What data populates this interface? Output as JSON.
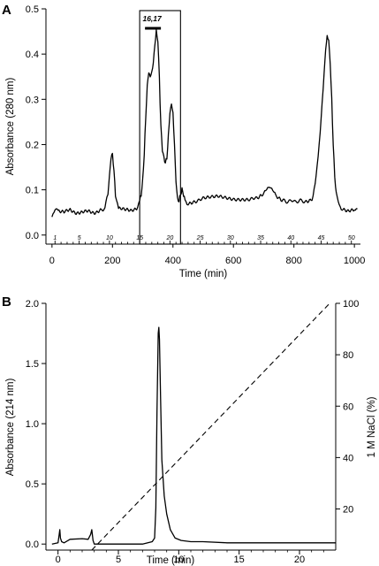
{
  "chart_data": [
    {
      "panel": "A",
      "type": "line",
      "xlabel": "Time (min)",
      "ylabel": "Absorbance (280 nm)",
      "xlim": [
        -20,
        1020
      ],
      "ylim": [
        -0.02,
        0.5
      ],
      "xticks": [
        0,
        200,
        400,
        600,
        800,
        1000
      ],
      "yticks": [
        0.0,
        0.1,
        0.2,
        0.3,
        0.4,
        0.5
      ],
      "series": [
        {
          "x": [
            0,
            10,
            20,
            40,
            60,
            80,
            100,
            120,
            140,
            160,
            175,
            185,
            190,
            195,
            200,
            205,
            210,
            220,
            240,
            260,
            280,
            290,
            295,
            300,
            305,
            310,
            315,
            320,
            325,
            330,
            335,
            340,
            345,
            350,
            355,
            360,
            365,
            370,
            375,
            380,
            385,
            390,
            395,
            400,
            405,
            410,
            415,
            420,
            425,
            430,
            435,
            440,
            450,
            470,
            500,
            550,
            600,
            650,
            680,
            700,
            710,
            720,
            730,
            740,
            760,
            800,
            840,
            860,
            870,
            880,
            890,
            900,
            905,
            910,
            915,
            920,
            925,
            930,
            935,
            940,
            950,
            960,
            980,
            1000,
            1010
          ],
          "y": [
            0.04,
            0.06,
            0.055,
            0.05,
            0.055,
            0.05,
            0.05,
            0.052,
            0.05,
            0.055,
            0.06,
            0.09,
            0.13,
            0.17,
            0.18,
            0.14,
            0.09,
            0.06,
            0.055,
            0.055,
            0.06,
            0.075,
            0.09,
            0.12,
            0.18,
            0.26,
            0.33,
            0.36,
            0.35,
            0.36,
            0.38,
            0.42,
            0.45,
            0.43,
            0.35,
            0.24,
            0.19,
            0.17,
            0.16,
            0.17,
            0.22,
            0.27,
            0.29,
            0.27,
            0.2,
            0.12,
            0.08,
            0.075,
            0.09,
            0.1,
            0.09,
            0.075,
            0.07,
            0.075,
            0.08,
            0.085,
            0.08,
            0.08,
            0.08,
            0.09,
            0.1,
            0.11,
            0.1,
            0.085,
            0.075,
            0.075,
            0.075,
            0.08,
            0.11,
            0.17,
            0.26,
            0.36,
            0.41,
            0.44,
            0.43,
            0.38,
            0.3,
            0.2,
            0.13,
            0.09,
            0.065,
            0.058,
            0.055,
            0.055,
            0.058
          ]
        }
      ],
      "fraction_labels": [
        "1",
        "5",
        "10",
        "15",
        "20",
        "25",
        "30",
        "35",
        "40",
        "45",
        "50"
      ],
      "fraction_positions": [
        10,
        90,
        190,
        290,
        390,
        490,
        590,
        690,
        790,
        890,
        990
      ],
      "pool_box": {
        "x_range": [
          290,
          425
        ],
        "label": "16,17"
      },
      "grid": false,
      "legend": "none"
    },
    {
      "panel": "B",
      "type": "line",
      "xlabel": "Time (min)",
      "ylabel": "Absorbance (214 nm)",
      "y2label": "1 M NaCl (%)",
      "xlim": [
        -1,
        23
      ],
      "ylim": [
        -0.05,
        2.0
      ],
      "y2lim": [
        4,
        100
      ],
      "xticks": [
        0,
        5,
        10,
        15,
        20
      ],
      "yticks": [
        0.0,
        0.5,
        1.0,
        1.5,
        2.0
      ],
      "y2ticks": [
        20,
        40,
        60,
        80,
        100
      ],
      "series": [
        {
          "axis": "left",
          "x": [
            -0.5,
            0,
            0.1,
            0.15,
            0.2,
            0.3,
            0.5,
            1,
            2,
            2.5,
            2.7,
            2.8,
            2.9,
            3.0,
            3.2,
            4,
            5,
            6,
            7,
            7.8,
            8.0,
            8.1,
            8.2,
            8.3,
            8.35,
            8.4,
            8.5,
            8.6,
            8.8,
            9.0,
            9.3,
            9.7,
            10.2,
            11,
            12,
            14,
            16,
            18,
            20,
            23
          ],
          "y": [
            0.0,
            0.01,
            0.08,
            0.12,
            0.05,
            0.02,
            0.01,
            0.04,
            0.045,
            0.04,
            0.08,
            0.12,
            0.03,
            0.0,
            0.0,
            0.0,
            0.0,
            0.0,
            0.0,
            0.02,
            0.05,
            0.3,
            1.1,
            1.75,
            1.8,
            1.7,
            1.2,
            0.7,
            0.4,
            0.25,
            0.12,
            0.05,
            0.03,
            0.02,
            0.02,
            0.01,
            0.01,
            0.01,
            0.01,
            0.01
          ]
        },
        {
          "axis": "right",
          "style": "dashed",
          "x": [
            2.8,
            22.5
          ],
          "y": [
            4,
            100
          ]
        }
      ],
      "grid": false,
      "legend": "none"
    }
  ],
  "panels": {
    "a": {
      "letter": "A",
      "xlabel": "Time (min)",
      "ylabel": "Absorbance (280 nm)",
      "xtick_labels": [
        "0",
        "200",
        "400",
        "600",
        "800",
        "1000"
      ],
      "ytick_labels": [
        "0.0",
        "0.1",
        "0.2",
        "0.3",
        "0.4",
        "0.5"
      ],
      "pool_label": "16,17"
    },
    "b": {
      "letter": "B",
      "xlabel": "Time (min)",
      "ylabel": "Absorbance (214 nm)",
      "y2label": "1 M NaCl (%)",
      "xtick_labels": [
        "0",
        "5",
        "10",
        "15",
        "20"
      ],
      "ytick_labels": [
        "0.0",
        "0.5",
        "1.0",
        "1.5",
        "2.0"
      ],
      "y2tick_labels": [
        "20",
        "40",
        "60",
        "80",
        "100"
      ]
    }
  }
}
